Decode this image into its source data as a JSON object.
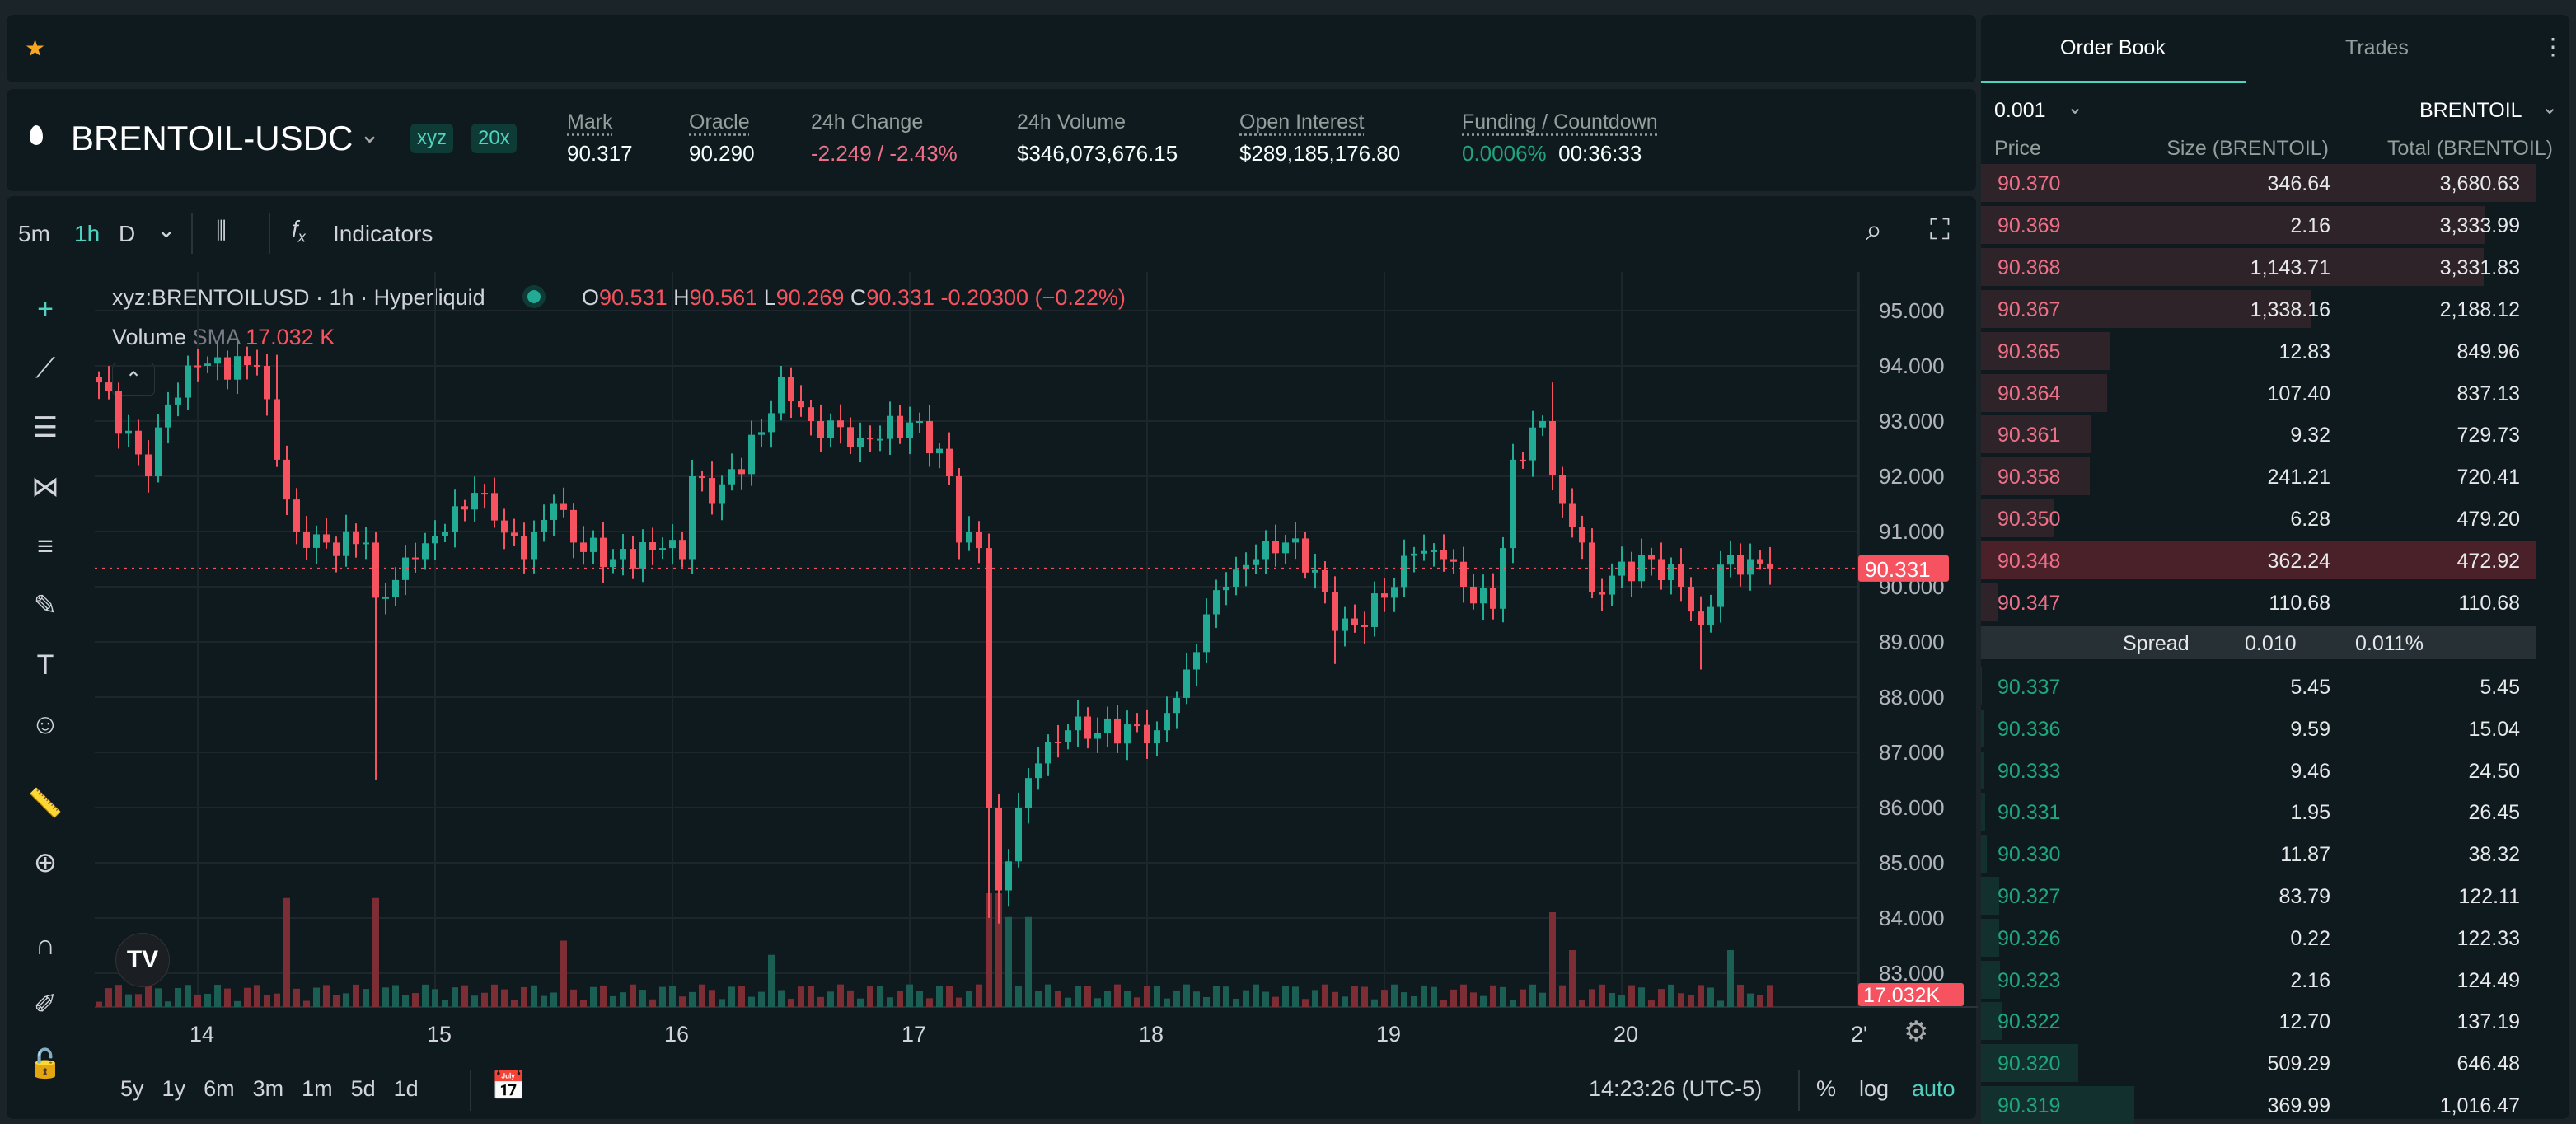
{
  "topbar": {
    "star_icon": "star-icon"
  },
  "header": {
    "symbol": "BRENTOIL-USDC",
    "badge_dex": "xyz",
    "badge_leverage": "20x",
    "stats": [
      {
        "label": "Mark",
        "value": "90.317"
      },
      {
        "label": "Oracle",
        "value": "90.290"
      },
      {
        "label": "24h Change",
        "value": "-2.249 / -2.43%"
      },
      {
        "label": "24h Volume",
        "value": "$346,073,676.15"
      },
      {
        "label": "Open Interest",
        "value": "$289,185,176.80"
      }
    ],
    "funding_label": "Funding / Countdown",
    "funding_rate": "0.0006%",
    "countdown": "00:36:33"
  },
  "chart_toolbar": {
    "intervals": [
      "5m",
      "1h",
      "D"
    ],
    "active_interval": "1h",
    "indicators": "Indicators"
  },
  "legend": {
    "symbol": "xyz:BRENTOILUSD · 1h · Hyperliquid",
    "o_label": "O",
    "o": "90.531",
    "h_label": "H",
    "h": "90.561",
    "l_label": "L",
    "l": "90.269",
    "c_label": "C",
    "c": "90.331",
    "change": "-0.20300 (−0.22%)",
    "volume_label": "Volume",
    "sma_label": "SMA",
    "sma_value": "17.032 K"
  },
  "bottom_bar": {
    "ranges": [
      "5y",
      "1y",
      "6m",
      "3m",
      "1m",
      "5d",
      "1d"
    ],
    "clock": "14:23:26 (UTC-5)",
    "percent": "%",
    "log": "log",
    "auto": "auto"
  },
  "colors": {
    "up": "#22ab94",
    "down": "#f7525f",
    "accent": "#50d2c1"
  },
  "chart_data": {
    "type": "candlestick",
    "interval": "1h",
    "last_price": "90.331",
    "volume_last": "17.032K",
    "y_ticks": [
      "95.000",
      "94.000",
      "93.000",
      "92.000",
      "91.000",
      "90.000",
      "89.000",
      "88.000",
      "87.000",
      "86.000",
      "85.000",
      "84.000",
      "83.000"
    ],
    "ylim": [
      83,
      95
    ],
    "x_ticks": [
      "14",
      "15",
      "16",
      "17",
      "18",
      "19",
      "20",
      "2'"
    ],
    "first_day_hour_index": 10,
    "close_keyframes": [
      [
        0,
        93.7
      ],
      [
        5,
        92.0
      ],
      [
        7,
        93.3
      ],
      [
        10,
        94.0
      ],
      [
        16,
        94.0
      ],
      [
        18,
        92.3
      ],
      [
        20,
        91.0
      ],
      [
        23,
        90.8
      ],
      [
        27,
        90.8
      ],
      [
        28,
        89.8
      ],
      [
        32,
        90.5
      ],
      [
        35,
        91.0
      ],
      [
        38,
        91.7
      ],
      [
        40,
        91.2
      ],
      [
        43,
        90.5
      ],
      [
        46,
        91.5
      ],
      [
        48,
        90.8
      ],
      [
        52,
        90.5
      ],
      [
        57,
        90.7
      ],
      [
        59,
        90.5
      ],
      [
        60,
        92.0
      ],
      [
        62,
        91.5
      ],
      [
        67,
        92.8
      ],
      [
        69,
        93.8
      ],
      [
        72,
        93.0
      ],
      [
        77,
        92.7
      ],
      [
        83,
        93.0
      ],
      [
        86,
        92.0
      ],
      [
        87,
        90.8
      ],
      [
        89,
        90.7
      ],
      [
        90,
        86.0
      ],
      [
        91,
        84.5
      ],
      [
        93,
        86.0
      ],
      [
        95,
        86.8
      ],
      [
        98,
        87.4
      ],
      [
        107,
        87.4
      ],
      [
        110,
        88.5
      ],
      [
        112,
        89.5
      ],
      [
        114,
        90.0
      ],
      [
        117,
        90.5
      ],
      [
        120,
        90.8
      ],
      [
        123,
        90.3
      ],
      [
        125,
        89.2
      ],
      [
        127,
        89.3
      ],
      [
        130,
        89.8
      ],
      [
        133,
        90.6
      ],
      [
        136,
        90.5
      ],
      [
        138,
        90.0
      ],
      [
        141,
        89.6
      ],
      [
        142,
        90.7
      ],
      [
        143,
        92.3
      ],
      [
        146,
        93.0
      ],
      [
        148,
        91.5
      ],
      [
        150,
        90.8
      ],
      [
        151,
        89.9
      ],
      [
        153,
        90.2
      ],
      [
        157,
        90.5
      ],
      [
        160,
        90.0
      ],
      [
        162,
        89.3
      ],
      [
        164,
        90.4
      ],
      [
        167,
        90.5
      ],
      [
        169,
        90.331
      ]
    ],
    "low_overrides": [
      [
        28,
        86.5
      ],
      [
        90,
        84.0
      ],
      [
        91,
        83.9
      ],
      [
        162,
        88.5
      ],
      [
        125,
        88.6
      ]
    ],
    "high_overrides": [
      [
        147,
        93.7
      ],
      [
        69,
        94.0
      ],
      [
        18,
        94.2
      ]
    ],
    "volume_spikes_k": [
      [
        19,
        115
      ],
      [
        28,
        115
      ],
      [
        47,
        70
      ],
      [
        68,
        55
      ],
      [
        90,
        120
      ],
      [
        91,
        120
      ],
      [
        92,
        95
      ],
      [
        94,
        95
      ],
      [
        147,
        100
      ],
      [
        149,
        60
      ],
      [
        165,
        60
      ]
    ],
    "volume_base_k": 14
  },
  "orderbook": {
    "tabs": [
      "Order Book",
      "Trades"
    ],
    "tick": "0.001",
    "unit": "BRENTOIL",
    "headers": [
      "Price",
      "Size (BRENTOIL)",
      "Total (BRENTOIL)"
    ],
    "max_total": 3680.63,
    "asks": [
      [
        "90.370",
        "346.64",
        "3,680.63",
        3680.63
      ],
      [
        "90.369",
        "2.16",
        "3,333.99",
        3333.99
      ],
      [
        "90.368",
        "1,143.71",
        "3,331.83",
        3331.83
      ],
      [
        "90.367",
        "1,338.16",
        "2,188.12",
        2188.12
      ],
      [
        "90.365",
        "12.83",
        "849.96",
        849.96
      ],
      [
        "90.364",
        "107.40",
        "837.13",
        837.13
      ],
      [
        "90.361",
        "9.32",
        "729.73",
        729.73
      ],
      [
        "90.358",
        "241.21",
        "720.41",
        720.41
      ],
      [
        "90.350",
        "6.28",
        "479.20",
        479.2
      ],
      [
        "90.348",
        "362.24",
        "472.92",
        472.92
      ],
      [
        "90.347",
        "110.68",
        "110.68",
        110.68
      ]
    ],
    "spread_label": "Spread",
    "spread": "0.010",
    "spread_pct": "0.011%",
    "bids": [
      [
        "90.337",
        "5.45",
        "5.45",
        5.45
      ],
      [
        "90.336",
        "9.59",
        "15.04",
        15.04
      ],
      [
        "90.333",
        "9.46",
        "24.50",
        24.5
      ],
      [
        "90.331",
        "1.95",
        "26.45",
        26.45
      ],
      [
        "90.330",
        "11.87",
        "38.32",
        38.32
      ],
      [
        "90.327",
        "83.79",
        "122.11",
        122.11
      ],
      [
        "90.326",
        "0.22",
        "122.33",
        122.33
      ],
      [
        "90.323",
        "2.16",
        "124.49",
        124.49
      ],
      [
        "90.322",
        "12.70",
        "137.19",
        137.19
      ],
      [
        "90.320",
        "509.29",
        "646.48",
        646.48
      ],
      [
        "90.319",
        "369.99",
        "1,016.47",
        1016.47
      ]
    ]
  }
}
